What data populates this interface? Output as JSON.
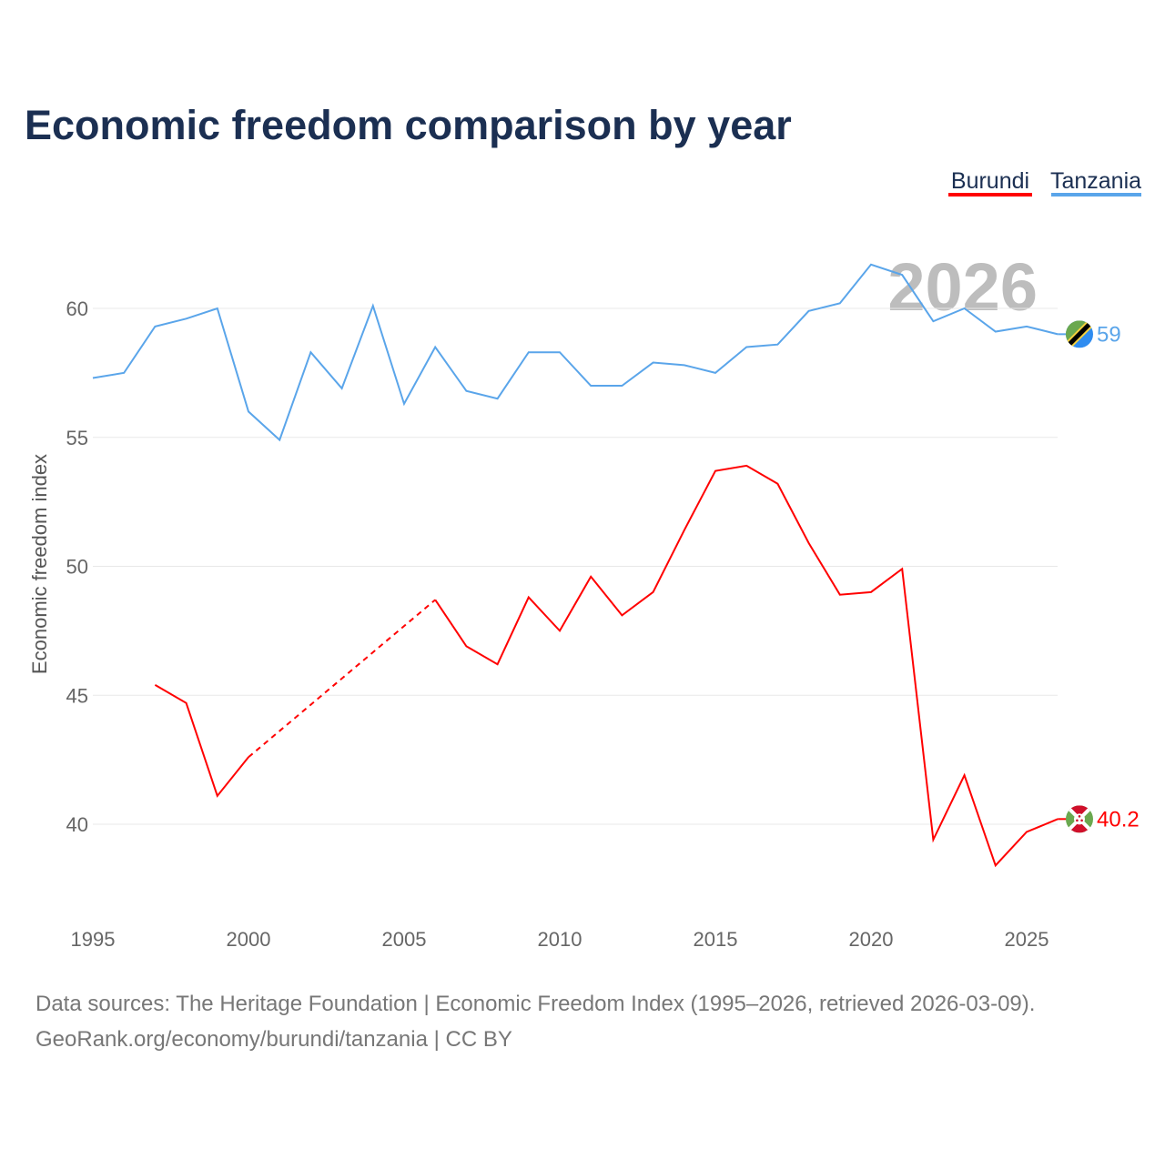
{
  "chart_data": {
    "type": "line",
    "title": "Economic freedom comparison by year",
    "xlabel": "",
    "ylabel": "Economic freedom index",
    "xlim": [
      1995,
      2026
    ],
    "ylim": [
      37.5,
      62.5
    ],
    "x_ticks": [
      1995,
      2000,
      2005,
      2010,
      2015,
      2020,
      2025
    ],
    "y_ticks": [
      40,
      45,
      50,
      55,
      60
    ],
    "grid": true,
    "legend_placement": "top-right",
    "year_watermark": "2026",
    "series": [
      {
        "name": "Burundi",
        "color": "#ff0000",
        "end_label": "40.2",
        "flag": "burundi-flag",
        "x": [
          1997,
          1998,
          1999,
          2000,
          2006,
          2007,
          2008,
          2009,
          2010,
          2011,
          2012,
          2013,
          2014,
          2015,
          2016,
          2017,
          2018,
          2019,
          2020,
          2021,
          2022,
          2023,
          2024,
          2025,
          2026
        ],
        "values": [
          45.4,
          44.7,
          41.1,
          42.6,
          48.7,
          46.9,
          46.2,
          48.8,
          47.5,
          49.6,
          48.1,
          49.0,
          51.4,
          53.7,
          53.9,
          53.2,
          50.9,
          48.9,
          49.0,
          49.9,
          39.4,
          41.9,
          38.4,
          39.7,
          40.2
        ],
        "gaps_dashed": [
          [
            2000,
            2006
          ]
        ]
      },
      {
        "name": "Tanzania",
        "color": "#5aa5ea",
        "end_label": "59",
        "flag": "tanzania-flag",
        "x": [
          1995,
          1996,
          1997,
          1998,
          1999,
          2000,
          2001,
          2002,
          2003,
          2004,
          2005,
          2006,
          2007,
          2008,
          2009,
          2010,
          2011,
          2012,
          2013,
          2014,
          2015,
          2016,
          2017,
          2018,
          2019,
          2020,
          2021,
          2022,
          2023,
          2024,
          2025,
          2026
        ],
        "values": [
          57.3,
          57.5,
          59.3,
          59.6,
          60.0,
          56.0,
          54.9,
          58.3,
          56.9,
          60.1,
          56.3,
          58.5,
          56.8,
          56.5,
          58.3,
          58.3,
          57.0,
          57.0,
          57.9,
          57.8,
          57.5,
          58.5,
          58.6,
          59.9,
          60.2,
          61.7,
          61.3,
          59.5,
          60.0,
          59.1,
          59.3,
          59.0
        ],
        "gaps_dashed": []
      }
    ]
  },
  "footer": {
    "line1": "Data sources: The Heritage Foundation | Economic Freedom Index (1995–2026, retrieved 2026-03-09).",
    "line2": "GeoRank.org/economy/burundi/tanzania | CC BY"
  }
}
